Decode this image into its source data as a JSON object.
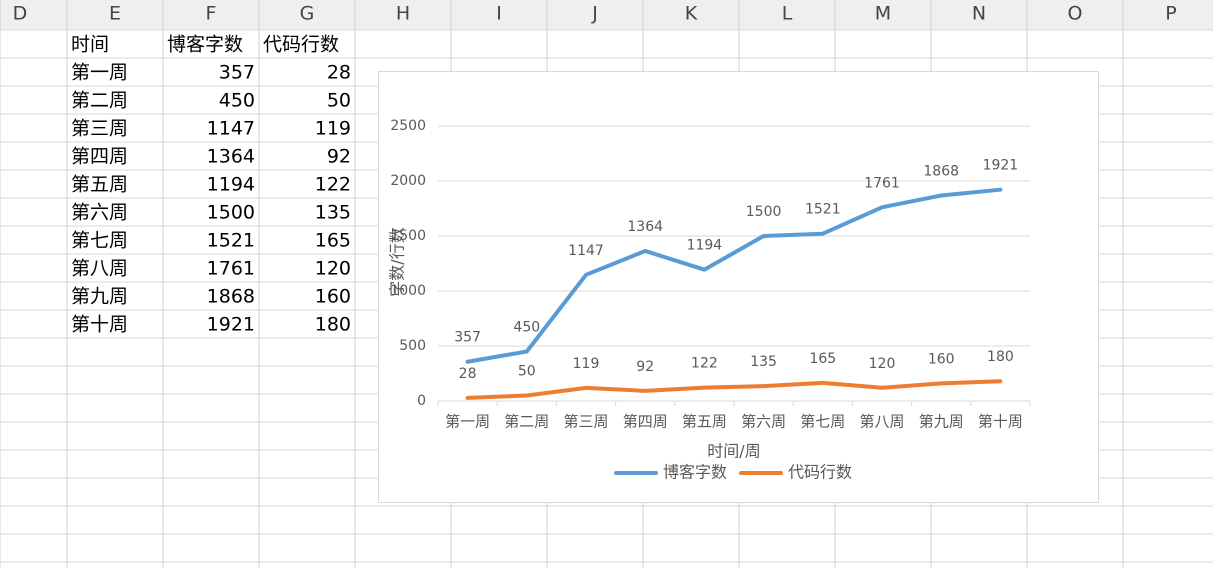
{
  "columns": [
    "D",
    "E",
    "F",
    "G",
    "H",
    "I",
    "J",
    "K",
    "L",
    "M",
    "N",
    "O",
    "P"
  ],
  "table": {
    "header": [
      "时间",
      "博客字数",
      "代码行数"
    ],
    "rows": [
      [
        "第一周",
        357,
        28
      ],
      [
        "第二周",
        450,
        50
      ],
      [
        "第三周",
        1147,
        119
      ],
      [
        "第四周",
        1364,
        92
      ],
      [
        "第五周",
        1194,
        122
      ],
      [
        "第六周",
        1500,
        135
      ],
      [
        "第七周",
        1521,
        165
      ],
      [
        "第八周",
        1761,
        120
      ],
      [
        "第九周",
        1868,
        160
      ],
      [
        "第十周",
        1921,
        180
      ]
    ]
  },
  "chart_data": {
    "type": "line",
    "categories": [
      "第一周",
      "第二周",
      "第三周",
      "第四周",
      "第五周",
      "第六周",
      "第七周",
      "第八周",
      "第九周",
      "第十周"
    ],
    "series": [
      {
        "name": "博客字数",
        "color": "#5b9bd5",
        "values": [
          357,
          450,
          1147,
          1364,
          1194,
          1500,
          1521,
          1761,
          1868,
          1921
        ]
      },
      {
        "name": "代码行数",
        "color": "#ed7d31",
        "values": [
          28,
          50,
          119,
          92,
          122,
          135,
          165,
          120,
          160,
          180
        ]
      }
    ],
    "ylim": [
      0,
      2500
    ],
    "yticks": [
      0,
      500,
      1000,
      1500,
      2000,
      2500
    ],
    "grid": true,
    "x_label": "时间/周",
    "y_label": "字数/行数",
    "data_labels": true,
    "legend": "bottom"
  }
}
